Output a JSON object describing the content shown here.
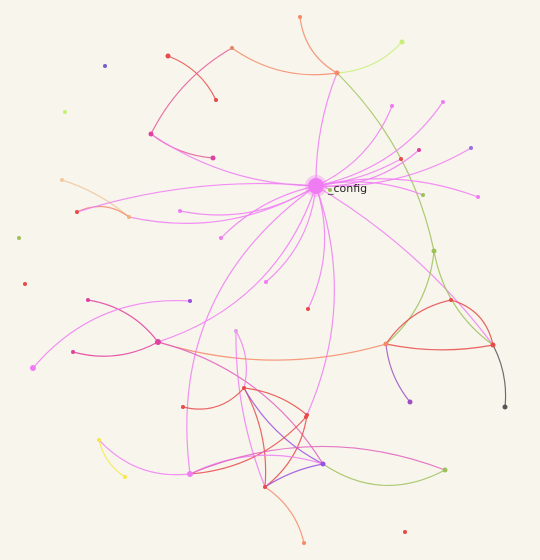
{
  "graph": {
    "focus_label": "_config",
    "colors": {
      "background": "#f8f5ec",
      "pink": "#f07cf4",
      "magenta": "#e040a0",
      "red": "#e84a4a",
      "salmon": "#f48a6a",
      "olive": "#9cc15a",
      "lime": "#c8ee7a",
      "violet": "#9a50e0",
      "yellow": "#f4e84a",
      "gray": "#555555"
    },
    "nodes": [
      {
        "id": "config",
        "label": "_config",
        "color": "#f07cf4",
        "r": 8
      },
      {
        "id": "n_top1",
        "label": "",
        "color": "#f48a6a",
        "r": 2
      },
      {
        "id": "n_top2",
        "label": "",
        "color": "#c8ee7a",
        "r": 2.5
      },
      {
        "id": "n_hub1",
        "label": "",
        "color": "#f48a6a",
        "r": 2.5
      },
      {
        "id": "n_a1",
        "label": "",
        "color": "#e84a4a",
        "r": 2.5
      },
      {
        "id": "n_a2",
        "label": "",
        "color": "#e08a6a",
        "r": 2
      },
      {
        "id": "n_a3",
        "label": "",
        "color": "#e84a4a",
        "r": 2
      },
      {
        "id": "n_b1",
        "label": "",
        "color": "#e040a0",
        "r": 2.5
      },
      {
        "id": "n_b2",
        "label": "",
        "color": "#f0c8a0",
        "r": 2
      },
      {
        "id": "n_b3",
        "label": "",
        "color": "#e84a4a",
        "r": 2
      },
      {
        "id": "n_b4",
        "label": "",
        "color": "#e040a0",
        "r": 2.5
      },
      {
        "id": "n_b5",
        "label": "",
        "color": "#f0b080",
        "r": 2
      },
      {
        "id": "n_c1",
        "label": "",
        "color": "#f07cf4",
        "r": 2
      },
      {
        "id": "n_c2",
        "label": "",
        "color": "#f07cf4",
        "r": 2
      },
      {
        "id": "n_c3",
        "label": "",
        "color": "#f07cf4",
        "r": 2
      },
      {
        "id": "n_r1",
        "label": "",
        "color": "#f07cf4",
        "r": 2
      },
      {
        "id": "n_r2",
        "label": "",
        "color": "#f07cf4",
        "r": 2
      },
      {
        "id": "n_r3",
        "label": "",
        "color": "#e040a0",
        "r": 2
      },
      {
        "id": "n_r4",
        "label": "",
        "color": "#9a70e0",
        "r": 2
      },
      {
        "id": "n_r5",
        "label": "",
        "color": "#f07cf4",
        "r": 2
      },
      {
        "id": "n_r6",
        "label": "",
        "color": "#9cc15a",
        "r": 2
      },
      {
        "id": "n_r7",
        "label": "",
        "color": "#9cc15a",
        "r": 2
      },
      {
        "id": "n_r8",
        "label": "",
        "color": "#e84a4a",
        "r": 2
      },
      {
        "id": "n_iso1",
        "label": "",
        "color": "#7a5ad0",
        "r": 2
      },
      {
        "id": "n_iso2",
        "label": "",
        "color": "#c8ee7a",
        "r": 2
      },
      {
        "id": "n_iso3",
        "label": "",
        "color": "#9cc15a",
        "r": 2
      },
      {
        "id": "n_iso4",
        "label": "",
        "color": "#e84a4a",
        "r": 2
      },
      {
        "id": "n_iso5",
        "label": "",
        "color": "#e84a4a",
        "r": 2
      },
      {
        "id": "n_mid1",
        "label": "",
        "color": "#e84a4a",
        "r": 2
      },
      {
        "id": "n_side",
        "label": "",
        "color": "#9cc15a",
        "r": 2.5
      },
      {
        "id": "n_x1",
        "label": "",
        "color": "#e84a4a",
        "r": 2
      },
      {
        "id": "n_x2",
        "label": "",
        "color": "#f48a6a",
        "r": 2.5
      },
      {
        "id": "n_x3",
        "label": "",
        "color": "#e84a4a",
        "r": 2.5
      },
      {
        "id": "n_x4",
        "label": "",
        "color": "#9a50c0",
        "r": 2.5
      },
      {
        "id": "n_x5",
        "label": "",
        "color": "#555555",
        "r": 2.5
      },
      {
        "id": "n_m1",
        "label": "",
        "color": "#e040a0",
        "r": 3
      },
      {
        "id": "n_m2",
        "label": "",
        "color": "#e040a0",
        "r": 2
      },
      {
        "id": "n_m3",
        "label": "",
        "color": "#9a50e0",
        "r": 2
      },
      {
        "id": "n_m4",
        "label": "",
        "color": "#f07cf4",
        "r": 3
      },
      {
        "id": "n_m5",
        "label": "",
        "color": "#e0a0e0",
        "r": 2
      },
      {
        "id": "n_m6",
        "label": "",
        "color": "#e84a4a",
        "r": 2
      },
      {
        "id": "n_m7",
        "label": "",
        "color": "#e84a4a",
        "r": 2
      },
      {
        "id": "n_m8",
        "label": "",
        "color": "#e84a4a",
        "r": 2
      },
      {
        "id": "n_m9",
        "label": "",
        "color": "#e84a4a",
        "r": 2
      },
      {
        "id": "n_m10",
        "label": "",
        "color": "#f4e84a",
        "r": 2
      },
      {
        "id": "n_m11",
        "label": "",
        "color": "#f07cf4",
        "r": 3
      },
      {
        "id": "n_m12",
        "label": "",
        "color": "#f4e84a",
        "r": 2
      },
      {
        "id": "n_m13",
        "label": "",
        "color": "#e84a4a",
        "r": 2
      },
      {
        "id": "n_m14",
        "label": "",
        "color": "#9a50e0",
        "r": 2.5
      },
      {
        "id": "n_m15",
        "label": "",
        "color": "#e040a0",
        "r": 2
      },
      {
        "id": "n_m16",
        "label": "",
        "color": "#9cc15a",
        "r": 2.5
      },
      {
        "id": "n_m17",
        "label": "",
        "color": "#f48a6a",
        "r": 2
      }
    ],
    "edges": [
      {
        "source": "n_top1",
        "target": "n_hub1",
        "color": "#f48a6a",
        "bend": 0.25
      },
      {
        "source": "n_top2",
        "target": "n_hub1",
        "color": "#c8ee7a",
        "bend": -0.2
      },
      {
        "source": "n_a2",
        "target": "n_hub1",
        "color": "#f48a6a",
        "bend": 0.2
      },
      {
        "source": "n_a1",
        "target": "n_a3",
        "color": "#e84a4a",
        "bend": -0.2
      },
      {
        "source": "n_hub1",
        "target": "config",
        "color": "#f07cf4",
        "bend": 0.1
      },
      {
        "source": "n_hub1",
        "target": "n_side",
        "color": "#9cc15a",
        "bend": -0.15
      },
      {
        "source": "n_a2",
        "target": "n_b1",
        "color": "#e65a9a",
        "bend": 0.15
      },
      {
        "source": "n_b1",
        "target": "n_b4",
        "color": "#e65a9a",
        "bend": 0.15
      },
      {
        "source": "n_b1",
        "target": "config",
        "color": "#f07cf4",
        "bend": 0.15
      },
      {
        "source": "n_b2",
        "target": "n_b5",
        "color": "#f0c8a0",
        "bend": -0.1
      },
      {
        "source": "n_b5",
        "target": "n_b3",
        "color": "#f48a6a",
        "bend": 0.3
      },
      {
        "source": "n_b5",
        "target": "config",
        "color": "#f07cf4",
        "bend": 0.2
      },
      {
        "source": "n_b3",
        "target": "config",
        "color": "#f07cf4",
        "bend": -0.1
      },
      {
        "source": "n_c1",
        "target": "config",
        "color": "#f07cf4",
        "bend": 0.2
      },
      {
        "source": "n_c2",
        "target": "config",
        "color": "#f07cf4",
        "bend": -0.15
      },
      {
        "source": "n_c3",
        "target": "config",
        "color": "#f07cf4",
        "bend": 0.2
      },
      {
        "source": "n_r1",
        "target": "config",
        "color": "#f07cf4",
        "bend": -0.2
      },
      {
        "source": "n_r2",
        "target": "config",
        "color": "#f07cf4",
        "bend": -0.2
      },
      {
        "source": "n_r3",
        "target": "config",
        "color": "#f07cf4",
        "bend": -0.2
      },
      {
        "source": "n_r4",
        "target": "config",
        "color": "#f07cf4",
        "bend": -0.15
      },
      {
        "source": "n_r5",
        "target": "config",
        "color": "#f07cf4",
        "bend": 0.15
      },
      {
        "source": "n_r6",
        "target": "config",
        "color": "#f07cf4",
        "bend": 0.15
      },
      {
        "source": "n_r7",
        "target": "config",
        "color": "#f07cf4",
        "bend": 0.2
      },
      {
        "source": "n_r8",
        "target": "config",
        "color": "#f07cf4",
        "bend": -0.1
      },
      {
        "source": "n_mid1",
        "target": "config",
        "color": "#f07cf4",
        "bend": 0.2
      },
      {
        "source": "config",
        "target": "n_m1",
        "color": "#f07cf4",
        "bend": -0.25
      },
      {
        "source": "config",
        "target": "n_x3",
        "color": "#f07cf4",
        "bend": -0.1
      },
      {
        "source": "config",
        "target": "n_m11",
        "color": "#f07cf4",
        "bend": 0.3
      },
      {
        "source": "config",
        "target": "n_m9",
        "color": "#f07cf4",
        "bend": -0.2
      },
      {
        "source": "n_side",
        "target": "n_x2",
        "color": "#9cc15a",
        "bend": -0.2
      },
      {
        "source": "n_side",
        "target": "n_x3",
        "color": "#9cc15a",
        "bend": 0.2
      },
      {
        "source": "n_x1",
        "target": "n_x2",
        "color": "#e84a4a",
        "bend": 0.2
      },
      {
        "source": "n_x1",
        "target": "n_x3",
        "color": "#e84a4a",
        "bend": -0.3
      },
      {
        "source": "n_x2",
        "target": "n_x3",
        "color": "#e84a4a",
        "bend": 0.1
      },
      {
        "source": "n_x2",
        "target": "n_x4",
        "color": "#9a50c0",
        "bend": 0.15
      },
      {
        "source": "n_x3",
        "target": "n_x5",
        "color": "#555555",
        "bend": -0.15
      },
      {
        "source": "n_x2",
        "target": "n_m1",
        "color": "#f48a6a",
        "bend": -0.15
      },
      {
        "source": "n_m2",
        "target": "n_m1",
        "color": "#e040a0",
        "bend": -0.2
      },
      {
        "source": "n_m15",
        "target": "n_m1",
        "color": "#e040a0",
        "bend": 0.2
      },
      {
        "source": "n_m3",
        "target": "n_m4",
        "color": "#f07cf4",
        "bend": 0.25
      },
      {
        "source": "n_m1",
        "target": "n_m14",
        "color": "#e060c0",
        "bend": -0.2
      },
      {
        "source": "n_m5",
        "target": "n_m6",
        "color": "#f07cf4",
        "bend": -0.2
      },
      {
        "source": "n_m5",
        "target": "n_m13",
        "color": "#f07cf4",
        "bend": 0.1
      },
      {
        "source": "n_m6",
        "target": "n_m13",
        "color": "#e84a4a",
        "bend": -0.15
      },
      {
        "source": "n_m7",
        "target": "n_m6",
        "color": "#e84a4a",
        "bend": 0.3
      },
      {
        "source": "n_m6",
        "target": "n_m8",
        "color": "#e84a4a",
        "bend": -0.15
      },
      {
        "source": "n_m6",
        "target": "n_m14",
        "color": "#9a50e0",
        "bend": 0.15
      },
      {
        "source": "n_m9",
        "target": "n_m11",
        "color": "#e84a4a",
        "bend": -0.2
      },
      {
        "source": "n_m8",
        "target": "n_m13",
        "color": "#e84a4a",
        "bend": -0.2
      },
      {
        "source": "n_m10",
        "target": "n_m12",
        "color": "#f4e84a",
        "bend": 0.2
      },
      {
        "source": "n_m10",
        "target": "n_m11",
        "color": "#f07cf4",
        "bend": 0.25
      },
      {
        "source": "n_m11",
        "target": "n_m14",
        "color": "#f07cf4",
        "bend": -0.2
      },
      {
        "source": "n_m13",
        "target": "n_m14",
        "color": "#9a50e0",
        "bend": -0.1
      },
      {
        "source": "n_m14",
        "target": "n_m16",
        "color": "#9cc15a",
        "bend": 0.3
      },
      {
        "source": "n_m11",
        "target": "n_m16",
        "color": "#e060c0",
        "bend": -0.2
      },
      {
        "source": "n_m13",
        "target": "n_m17",
        "color": "#f48a6a",
        "bend": -0.2
      }
    ]
  }
}
